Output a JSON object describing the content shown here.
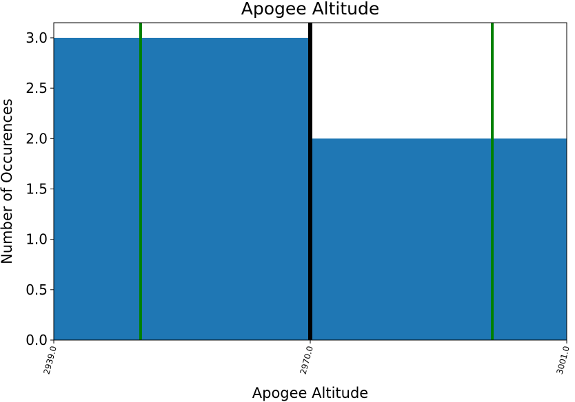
{
  "chart_data": {
    "type": "bar",
    "title": "Apogee Altitude",
    "xlabel": "Apogee Altitude",
    "ylabel": "Number of Occurences",
    "bins": [
      {
        "start": 2939.0,
        "end": 2970.0,
        "count": 3
      },
      {
        "start": 2970.0,
        "end": 3001.0,
        "count": 2
      }
    ],
    "xlim": [
      2939.0,
      3001.0
    ],
    "ylim": [
      0,
      3.15
    ],
    "x_ticks": [
      "2939.0",
      "2970.0",
      "3001.0"
    ],
    "y_ticks": [
      "0.0",
      "0.5",
      "1.0",
      "1.5",
      "2.0",
      "2.5",
      "3.0"
    ],
    "vertical_lines": [
      {
        "x": 2949.5,
        "color": "#008000"
      },
      {
        "x": 2970.0,
        "color": "#000000"
      },
      {
        "x": 2992.0,
        "color": "#008000"
      }
    ],
    "bar_color": "#1f77b4",
    "grid": false
  }
}
